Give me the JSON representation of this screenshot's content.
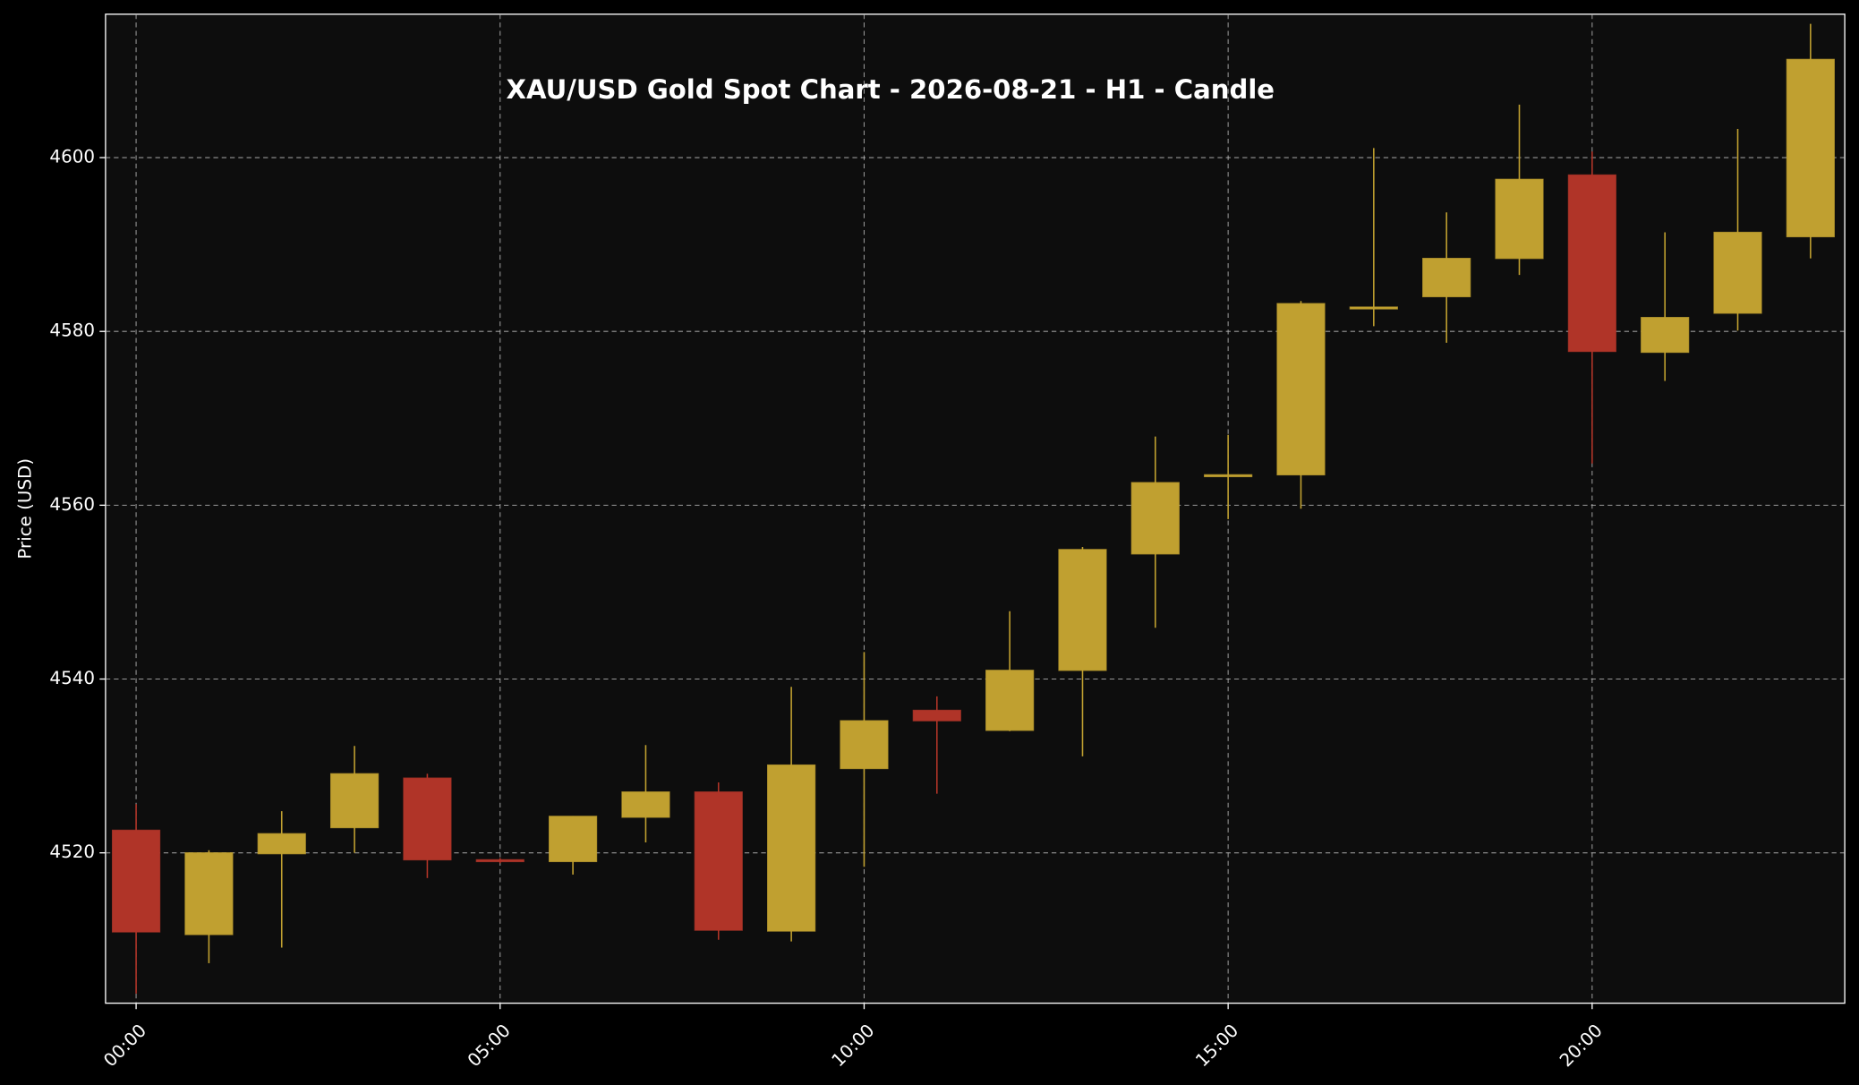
{
  "chart_data": {
    "type": "candlestick",
    "title": "XAU/USD Gold Spot Chart - 2026-08-21 - H1 - Candle",
    "y_label": "Price (USD)",
    "categories": [
      "00:00",
      null,
      null,
      null,
      null,
      "05:00",
      null,
      null,
      null,
      null,
      "10:00",
      null,
      null,
      null,
      null,
      "15:00",
      null,
      null,
      null,
      null,
      "20:00",
      null,
      null,
      null
    ],
    "open": [
      4522.6,
      4510.6,
      4519.9,
      4522.9,
      4528.6,
      4519.2,
      4519.0,
      4524.1,
      4527.0,
      4511.0,
      4529.7,
      4536.4,
      4534.1,
      4541.0,
      4554.4,
      4563.4,
      4563.5,
      4582.7,
      4584.0,
      4588.4,
      4598.0,
      4577.6,
      4582.1,
      4590.9
    ],
    "high": [
      4525.6,
      4520.3,
      4524.8,
      4532.3,
      4529.1,
      4519.4,
      4524.2,
      4532.4,
      4528.1,
      4539.1,
      4543.1,
      4538.0,
      4547.8,
      4555.2,
      4567.9,
      4568.1,
      4583.5,
      4601.1,
      4593.7,
      4606.1,
      4600.7,
      4591.4,
      4603.3,
      4615.4
    ],
    "low": [
      4503.8,
      4507.3,
      4509.1,
      4520.0,
      4517.1,
      4518.8,
      4517.5,
      4521.2,
      4510.0,
      4509.8,
      4518.4,
      4526.8,
      4534.0,
      4531.1,
      4545.9,
      4558.4,
      4559.6,
      4580.6,
      4578.7,
      4586.5,
      4564.8,
      4574.3,
      4580.1,
      4588.4
    ],
    "close": [
      4510.9,
      4520.0,
      4522.2,
      4529.1,
      4519.2,
      4519.0,
      4524.2,
      4527.0,
      4511.1,
      4530.1,
      4535.2,
      4535.2,
      4541.0,
      4554.9,
      4562.6,
      4563.5,
      4583.2,
      4582.8,
      4588.4,
      4597.5,
      4577.7,
      4581.6,
      4591.4,
      4611.3
    ],
    "up_color": "#c0a030",
    "down_color": "#b03428",
    "ylim": [
      4502.7,
      4616.5
    ],
    "yticks": [
      4520,
      4540,
      4560,
      4580,
      4600
    ],
    "grid": true
  }
}
